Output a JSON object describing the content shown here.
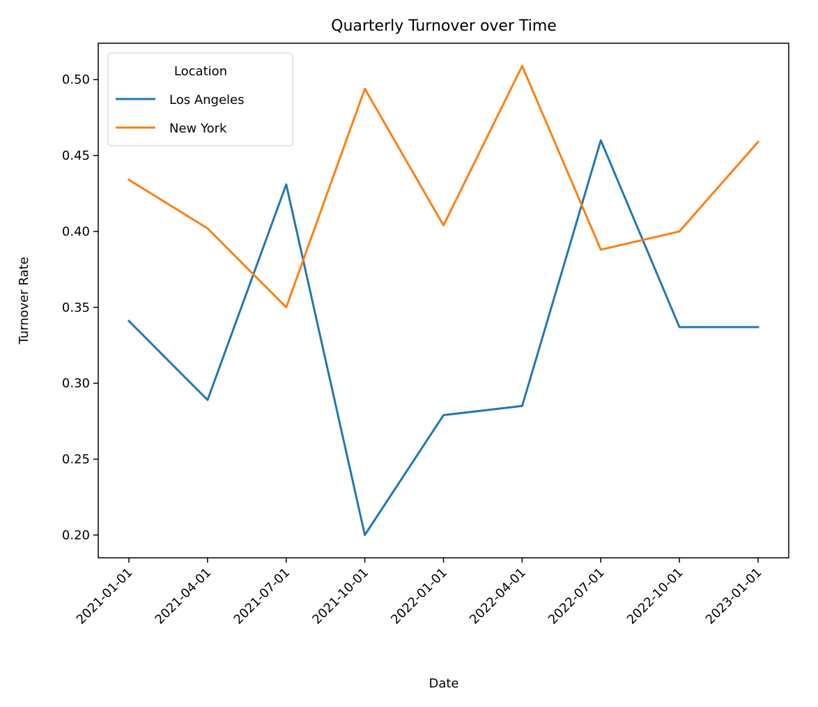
{
  "chart_data": {
    "type": "line",
    "title": "Quarterly Turnover over Time",
    "xlabel": "Date",
    "ylabel": "Turnover Rate",
    "x": [
      "2021-01-01",
      "2021-04-01",
      "2021-07-01",
      "2021-10-01",
      "2022-01-01",
      "2022-04-01",
      "2022-07-01",
      "2022-10-01",
      "2023-01-01"
    ],
    "yticks": [
      "0.20",
      "0.25",
      "0.30",
      "0.35",
      "0.40",
      "0.45",
      "0.50"
    ],
    "ylim": [
      0.185,
      0.524
    ],
    "grid": false,
    "legend": {
      "title": "Location",
      "position": "top-left"
    },
    "series": [
      {
        "name": "Los Angeles",
        "color": "#1f77b4",
        "values": [
          0.341,
          0.289,
          0.431,
          0.2,
          0.279,
          0.285,
          0.46,
          0.337,
          0.337
        ]
      },
      {
        "name": "New York",
        "color": "#ff7f0e",
        "values": [
          0.434,
          0.402,
          0.35,
          0.494,
          0.404,
          0.509,
          0.388,
          0.4,
          0.459
        ]
      }
    ]
  }
}
